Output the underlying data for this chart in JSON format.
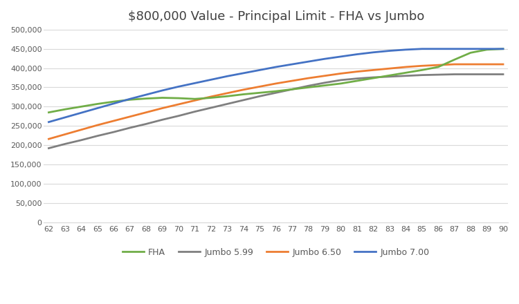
{
  "title": "$800,000 Value - Principal Limit - FHA vs Jumbo",
  "ages": [
    62,
    63,
    64,
    65,
    66,
    67,
    68,
    69,
    70,
    71,
    72,
    73,
    74,
    75,
    76,
    77,
    78,
    79,
    80,
    81,
    82,
    83,
    84,
    85,
    86,
    87,
    88,
    89,
    90
  ],
  "FHA": [
    285000,
    293000,
    300000,
    307000,
    313000,
    318000,
    321000,
    323000,
    322000,
    320000,
    323000,
    327000,
    332000,
    336000,
    340000,
    345000,
    350000,
    355000,
    360000,
    367000,
    374000,
    381000,
    388000,
    395000,
    403000,
    422000,
    440000,
    448000,
    450000
  ],
  "Jumbo599": [
    192000,
    203000,
    213000,
    224000,
    234000,
    245000,
    255000,
    266000,
    276000,
    287000,
    297000,
    307000,
    317000,
    327000,
    336000,
    345000,
    354000,
    362000,
    369000,
    373000,
    376000,
    378000,
    380000,
    382000,
    383000,
    384000,
    384000,
    384000,
    384000
  ],
  "Jumbo650": [
    216000,
    228000,
    240000,
    252000,
    263000,
    274000,
    285000,
    296000,
    306000,
    316000,
    326000,
    335000,
    344000,
    352000,
    360000,
    367000,
    374000,
    380000,
    386000,
    391000,
    395000,
    399000,
    403000,
    406000,
    408000,
    410000,
    410000,
    410000,
    410000
  ],
  "Jumbo700": [
    260000,
    272000,
    284000,
    296000,
    308000,
    320000,
    331000,
    342000,
    352000,
    361000,
    370000,
    379000,
    387000,
    395000,
    403000,
    410000,
    417000,
    424000,
    430000,
    436000,
    441000,
    445000,
    448000,
    450000,
    450000,
    450000,
    450000,
    450000,
    450000
  ],
  "fha_color": "#70ad47",
  "j599_color": "#7f7f7f",
  "j650_color": "#ed7d31",
  "j700_color": "#4472c4",
  "background_color": "#ffffff",
  "grid_color": "#d9d9d9",
  "ylim": [
    0,
    500000
  ],
  "yticks": [
    0,
    50000,
    100000,
    150000,
    200000,
    250000,
    300000,
    350000,
    400000,
    450000,
    500000
  ],
  "line_width": 2.0,
  "title_fontsize": 13,
  "tick_fontsize": 8,
  "legend_fontsize": 9
}
